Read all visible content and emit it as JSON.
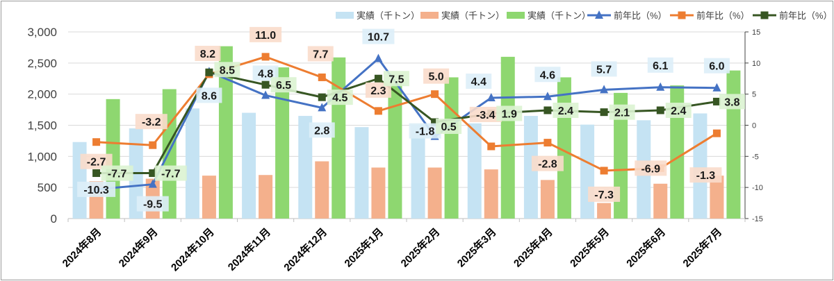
{
  "chart_data": {
    "type": "bar",
    "categories": [
      "2024年8月",
      "2024年9月",
      "2024年10月",
      "2024年11月",
      "2024年12月",
      "2025年1月",
      "2025年2月",
      "2025年3月",
      "2025年4月",
      "2025年5月",
      "2025年6月",
      "2025年7月"
    ],
    "bar_series": [
      {
        "name": "実績（千トン）",
        "color": "#c5e3f3",
        "values": [
          1230,
          1450,
          1770,
          1700,
          1650,
          1470,
          1510,
          1530,
          1650,
          1510,
          1580,
          1690
        ]
      },
      {
        "name": "実績（千トン）",
        "color": "#f4b08c",
        "values": [
          600,
          640,
          690,
          700,
          920,
          820,
          820,
          790,
          620,
          250,
          560,
          690
        ]
      },
      {
        "name": "実績（千トン）",
        "color": "#8ed770",
        "values": [
          1920,
          2080,
          2770,
          2430,
          2590,
          2160,
          2270,
          2600,
          2270,
          2020,
          2140,
          2380
        ]
      }
    ],
    "line_series": [
      {
        "name": "前年比（%）",
        "color": "#4472c4",
        "marker": "triangle",
        "values": [
          -10.3,
          -9.5,
          8.6,
          4.8,
          2.8,
          10.7,
          -1.8,
          4.4,
          4.6,
          5.7,
          6.1,
          6.0
        ]
      },
      {
        "name": "前年比（%）",
        "color": "#ed7d31",
        "marker": "square",
        "values": [
          -2.7,
          -3.2,
          8.2,
          11.0,
          7.7,
          2.3,
          5.0,
          -3.4,
          -2.8,
          -7.3,
          -6.9,
          -1.3
        ]
      },
      {
        "name": "前年比（%）",
        "color": "#375623",
        "marker": "square",
        "values": [
          -7.7,
          -7.7,
          8.5,
          6.5,
          4.5,
          7.5,
          0.5,
          1.9,
          2.4,
          2.1,
          2.4,
          3.8
        ]
      }
    ],
    "data_labels": {
      "blue": [
        "-10.3",
        "-9.5",
        "8.6",
        "4.8",
        "2.8",
        "10.7",
        "-1.8",
        "4.4",
        "4.6",
        "5.7",
        "6.1",
        "6.0"
      ],
      "orange": [
        "-2.7",
        "-3.2",
        "8.2",
        "11.0",
        "7.7",
        "2.3",
        "5.0",
        "-3.4",
        "-2.8",
        "-7.3",
        "-6.9",
        "-1.3"
      ],
      "green": [
        "-7.7",
        "-7.7",
        "8.5",
        "6.5",
        "4.5",
        "7.5",
        "0.5",
        "1.9",
        "2.4",
        "2.1",
        "2.4",
        "3.8"
      ]
    },
    "y_left": {
      "ylim": [
        0,
        3000
      ],
      "ticks": [
        "0",
        "500",
        "1,000",
        "1,500",
        "2,000",
        "2,500",
        "3,000"
      ]
    },
    "y_right": {
      "ylim": [
        -15,
        15
      ],
      "ticks": [
        "-15",
        "-10",
        "-5",
        "0",
        "5",
        "10",
        "15"
      ]
    },
    "title": "",
    "xlabel": "",
    "ylabel": "",
    "legend_position": "top-right",
    "grid": true
  }
}
